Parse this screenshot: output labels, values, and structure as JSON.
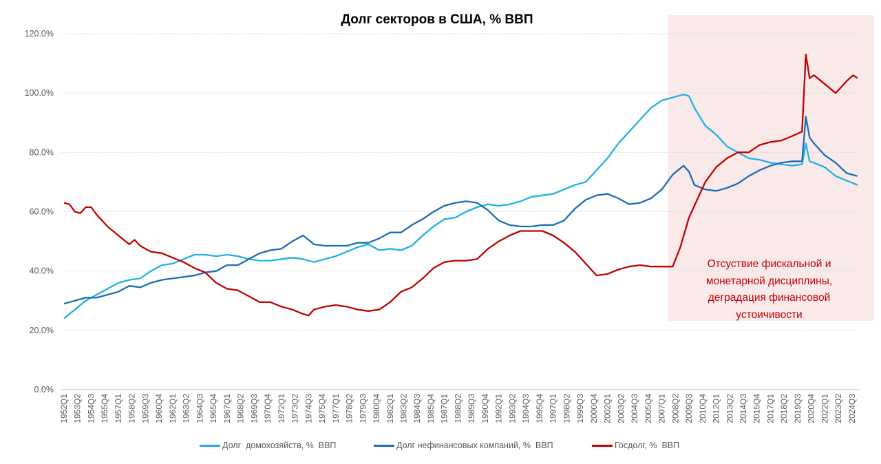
{
  "chart_data": {
    "type": "line",
    "title": "Долг секторов в США, % ВВП",
    "xlabel": "",
    "ylabel": "",
    "ylim": [
      0,
      120
    ],
    "y_ticks": [
      "0.0%",
      "20.0%",
      "40.0%",
      "60.0%",
      "80.0%",
      "100.0%",
      "120.0%"
    ],
    "grid": true,
    "legend_position": "bottom",
    "x_tick_labels": [
      "1952Q1",
      "1953Q2",
      "1954Q3",
      "1955Q4",
      "1957Q1",
      "1958Q2",
      "1959Q3",
      "1960Q4",
      "1962Q1",
      "1963Q2",
      "1964Q3",
      "1965Q4",
      "1967Q1",
      "1968Q2",
      "1969Q3",
      "1970Q4",
      "1972Q1",
      "1973Q2",
      "1974Q3",
      "1975Q4",
      "1977Q1",
      "1978Q2",
      "1979Q3",
      "1980Q4",
      "1982Q1",
      "1983Q2",
      "1984Q3",
      "1985Q4",
      "1987Q1",
      "1988Q2",
      "1989Q3",
      "1990Q4",
      "1992Q1",
      "1993Q2",
      "1994Q3",
      "1995Q4",
      "1997Q1",
      "1998Q2",
      "1999Q3",
      "2000Q4",
      "2002Q1",
      "2003Q2",
      "2004Q3",
      "2005Q4",
      "2007Q1",
      "2008Q2",
      "2009Q3",
      "2010Q4",
      "2012Q1",
      "2013Q2",
      "2014Q3",
      "2015Q4",
      "2017Q1",
      "2018Q2",
      "2019Q3",
      "2020Q4",
      "2022Q1",
      "2023Q2",
      "2024Q3"
    ],
    "x_units": "year (fractional)",
    "series": [
      {
        "name": "Долг  домохозяйств, %  ВВП",
        "color": "#1fb0e8",
        "points": [
          [
            1952,
            24
          ],
          [
            1953,
            27
          ],
          [
            1954,
            30
          ],
          [
            1955,
            32
          ],
          [
            1956,
            34
          ],
          [
            1957,
            36
          ],
          [
            1958,
            37
          ],
          [
            1959,
            37.5
          ],
          [
            1960,
            40
          ],
          [
            1961,
            42
          ],
          [
            1962,
            42.5
          ],
          [
            1963,
            44
          ],
          [
            1964,
            45.5
          ],
          [
            1965,
            45.5
          ],
          [
            1966,
            45
          ],
          [
            1967,
            45.5
          ],
          [
            1968,
            45
          ],
          [
            1969,
            44
          ],
          [
            1970,
            43.5
          ],
          [
            1971,
            43.5
          ],
          [
            1972,
            44
          ],
          [
            1973,
            44.5
          ],
          [
            1974,
            44
          ],
          [
            1975,
            43
          ],
          [
            1976,
            44
          ],
          [
            1977,
            45
          ],
          [
            1978,
            46.5
          ],
          [
            1979,
            48
          ],
          [
            1980,
            49
          ],
          [
            1981,
            47
          ],
          [
            1982,
            47.5
          ],
          [
            1983,
            47
          ],
          [
            1984,
            48.5
          ],
          [
            1985,
            52
          ],
          [
            1986,
            55
          ],
          [
            1987,
            57.5
          ],
          [
            1988,
            58
          ],
          [
            1989,
            60
          ],
          [
            1990,
            61.5
          ],
          [
            1991,
            62.5
          ],
          [
            1992,
            62
          ],
          [
            1993,
            62.5
          ],
          [
            1994,
            63.5
          ],
          [
            1995,
            65
          ],
          [
            1996,
            65.5
          ],
          [
            1997,
            66
          ],
          [
            1998,
            67.5
          ],
          [
            1999,
            69
          ],
          [
            2000,
            70
          ],
          [
            2001,
            74
          ],
          [
            2002,
            78
          ],
          [
            2003,
            83
          ],
          [
            2004,
            87
          ],
          [
            2005,
            91
          ],
          [
            2006,
            95
          ],
          [
            2007,
            97.5
          ],
          [
            2008,
            98.5
          ],
          [
            2009,
            99.5
          ],
          [
            2009.5,
            99
          ],
          [
            2010,
            95
          ],
          [
            2011,
            89
          ],
          [
            2012,
            86
          ],
          [
            2013,
            82
          ],
          [
            2014,
            80
          ],
          [
            2015,
            78
          ],
          [
            2016,
            77.5
          ],
          [
            2017,
            76.5
          ],
          [
            2018,
            76
          ],
          [
            2019,
            75.5
          ],
          [
            2019.9,
            76
          ],
          [
            2020.25,
            83
          ],
          [
            2020.6,
            77
          ],
          [
            2021,
            76.5
          ],
          [
            2022,
            75
          ],
          [
            2023,
            72
          ],
          [
            2024,
            70.5
          ],
          [
            2025,
            69
          ]
        ]
      },
      {
        "name": "Долг нефинансовых компаний, %  ВВП",
        "color": "#1a6cb5",
        "points": [
          [
            1952,
            29
          ],
          [
            1953,
            30
          ],
          [
            1954,
            31
          ],
          [
            1955,
            31
          ],
          [
            1956,
            32
          ],
          [
            1957,
            33
          ],
          [
            1958,
            35
          ],
          [
            1959,
            34.5
          ],
          [
            1960,
            36
          ],
          [
            1961,
            37
          ],
          [
            1962,
            37.5
          ],
          [
            1963,
            38
          ],
          [
            1964,
            38.5
          ],
          [
            1965,
            39.5
          ],
          [
            1966,
            40
          ],
          [
            1967,
            42
          ],
          [
            1968,
            42
          ],
          [
            1969,
            44
          ],
          [
            1970,
            46
          ],
          [
            1971,
            47
          ],
          [
            1972,
            47.5
          ],
          [
            1973,
            50
          ],
          [
            1974,
            52
          ],
          [
            1975,
            49
          ],
          [
            1976,
            48.5
          ],
          [
            1977,
            48.5
          ],
          [
            1978,
            48.5
          ],
          [
            1979,
            49.5
          ],
          [
            1980,
            49.5
          ],
          [
            1981,
            51
          ],
          [
            1982,
            53
          ],
          [
            1983,
            53
          ],
          [
            1984,
            55.5
          ],
          [
            1985,
            57.5
          ],
          [
            1986,
            60
          ],
          [
            1987,
            62
          ],
          [
            1988,
            63
          ],
          [
            1989,
            63.5
          ],
          [
            1990,
            63
          ],
          [
            1991,
            60.5
          ],
          [
            1992,
            57
          ],
          [
            1993,
            55.5
          ],
          [
            1994,
            55
          ],
          [
            1995,
            55
          ],
          [
            1996,
            55.5
          ],
          [
            1997,
            55.5
          ],
          [
            1998,
            57
          ],
          [
            1999,
            61
          ],
          [
            2000,
            64
          ],
          [
            2001,
            65.5
          ],
          [
            2002,
            66
          ],
          [
            2003,
            64.5
          ],
          [
            2004,
            62.5
          ],
          [
            2005,
            63
          ],
          [
            2006,
            64.5
          ],
          [
            2007,
            67.5
          ],
          [
            2008,
            72.5
          ],
          [
            2009,
            75.5
          ],
          [
            2009.5,
            73.5
          ],
          [
            2010,
            69
          ],
          [
            2011,
            67.5
          ],
          [
            2012,
            67
          ],
          [
            2013,
            68
          ],
          [
            2014,
            69.5
          ],
          [
            2015,
            72
          ],
          [
            2016,
            74
          ],
          [
            2017,
            75.5
          ],
          [
            2018,
            76.5
          ],
          [
            2019,
            77
          ],
          [
            2019.9,
            77
          ],
          [
            2020.25,
            92
          ],
          [
            2020.6,
            85
          ],
          [
            2021,
            83
          ],
          [
            2022,
            79
          ],
          [
            2023,
            76.5
          ],
          [
            2024,
            73
          ],
          [
            2025,
            72
          ]
        ]
      },
      {
        "name": "Госдолг, %  ВВП",
        "color": "#c00000",
        "points": [
          [
            1952,
            63
          ],
          [
            1952.5,
            62.5
          ],
          [
            1953,
            60
          ],
          [
            1953.5,
            59.5
          ],
          [
            1954,
            61.5
          ],
          [
            1954.5,
            61.5
          ],
          [
            1955,
            59
          ],
          [
            1956,
            55
          ],
          [
            1957,
            52
          ],
          [
            1958,
            49
          ],
          [
            1958.5,
            50.5
          ],
          [
            1959,
            48.5
          ],
          [
            1960,
            46.5
          ],
          [
            1961,
            46
          ],
          [
            1962,
            44.5
          ],
          [
            1963,
            43
          ],
          [
            1964,
            41
          ],
          [
            1965,
            39.5
          ],
          [
            1966,
            36
          ],
          [
            1967,
            34
          ],
          [
            1968,
            33.5
          ],
          [
            1969,
            31.5
          ],
          [
            1970,
            29.5
          ],
          [
            1971,
            29.5
          ],
          [
            1972,
            28
          ],
          [
            1973,
            27
          ],
          [
            1974,
            25.5
          ],
          [
            1974.5,
            25
          ],
          [
            1975,
            27
          ],
          [
            1976,
            28
          ],
          [
            1977,
            28.5
          ],
          [
            1978,
            28
          ],
          [
            1979,
            27
          ],
          [
            1980,
            26.5
          ],
          [
            1981,
            27
          ],
          [
            1982,
            29.5
          ],
          [
            1983,
            33
          ],
          [
            1984,
            34.5
          ],
          [
            1985,
            37.5
          ],
          [
            1986,
            41
          ],
          [
            1987,
            43
          ],
          [
            1988,
            43.5
          ],
          [
            1989,
            43.5
          ],
          [
            1990,
            44
          ],
          [
            1991,
            47.5
          ],
          [
            1992,
            50
          ],
          [
            1993,
            52
          ],
          [
            1994,
            53.5
          ],
          [
            1995,
            53.5
          ],
          [
            1996,
            53.5
          ],
          [
            1997,
            52
          ],
          [
            1998,
            49.5
          ],
          [
            1999,
            46.5
          ],
          [
            2000,
            42.5
          ],
          [
            2001,
            38.5
          ],
          [
            2002,
            39
          ],
          [
            2003,
            40.5
          ],
          [
            2004,
            41.5
          ],
          [
            2005,
            42
          ],
          [
            2006,
            41.5
          ],
          [
            2007,
            41.5
          ],
          [
            2008,
            41.5
          ],
          [
            2008.7,
            48
          ],
          [
            2009.5,
            58
          ],
          [
            2010,
            62
          ],
          [
            2011,
            70
          ],
          [
            2012,
            75
          ],
          [
            2013,
            78
          ],
          [
            2014,
            80
          ],
          [
            2015,
            80
          ],
          [
            2016,
            82.5
          ],
          [
            2017,
            83.5
          ],
          [
            2018,
            84
          ],
          [
            2019,
            85.5
          ],
          [
            2019.9,
            87
          ],
          [
            2020.25,
            113
          ],
          [
            2020.6,
            105
          ],
          [
            2021,
            106
          ],
          [
            2022,
            103
          ],
          [
            2022.5,
            101.5
          ],
          [
            2023,
            100
          ],
          [
            2023.5,
            102
          ],
          [
            2024,
            104
          ],
          [
            2024.6,
            106
          ],
          [
            2025,
            105
          ]
        ]
      }
    ],
    "annotation": {
      "lines": [
        "Отсуствие фискальной и",
        "монетарной дисциплины,",
        "деградация финансовой",
        "устоичивости"
      ],
      "highlight_from_year": 2008,
      "highlight_color": "#f9e9e9",
      "text_color": "#c00000"
    }
  }
}
